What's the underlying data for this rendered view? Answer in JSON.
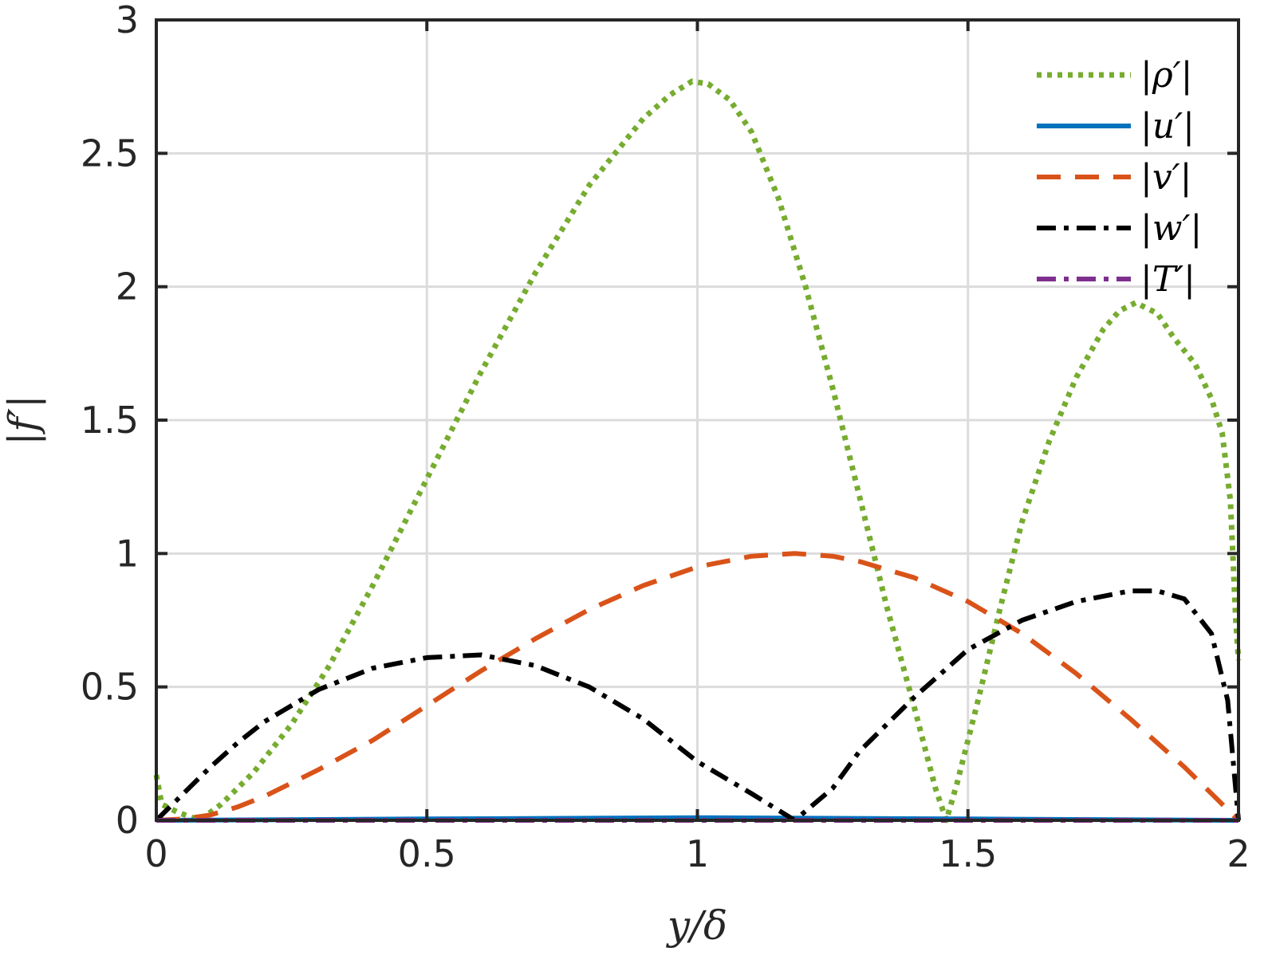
{
  "chart_data": {
    "type": "line",
    "title": "",
    "xlabel": "y/δ",
    "ylabel": "|f′|",
    "xlim": [
      0,
      2
    ],
    "ylim": [
      0,
      3
    ],
    "xticks": [
      0,
      0.5,
      1,
      1.5,
      2
    ],
    "xtick_labels": [
      "0",
      "0.5",
      "1",
      "1.5",
      "2"
    ],
    "yticks": [
      0,
      0.5,
      1,
      1.5,
      2,
      2.5,
      3
    ],
    "ytick_labels": [
      "0",
      "0.5",
      "1",
      "1.5",
      "2",
      "2.5",
      "3"
    ],
    "grid": true,
    "legend_position": "top-right",
    "series": [
      {
        "name": "|ρ′|",
        "color": "#77ac30",
        "style": "dotted",
        "x": [
          0,
          0.01,
          0.04,
          0.08,
          0.12,
          0.18,
          0.25,
          0.32,
          0.4,
          0.5,
          0.6,
          0.7,
          0.8,
          0.9,
          0.95,
          0.99,
          1.02,
          1.06,
          1.1,
          1.15,
          1.2,
          1.25,
          1.3,
          1.35,
          1.4,
          1.44,
          1.46,
          1.48,
          1.52,
          1.56,
          1.6,
          1.65,
          1.7,
          1.75,
          1.78,
          1.81,
          1.85,
          1.88,
          1.92,
          1.95,
          1.97,
          1.985,
          1.995,
          2.0
        ],
        "y": [
          0.17,
          0.06,
          0.03,
          0.0,
          0.06,
          0.18,
          0.36,
          0.58,
          0.88,
          1.28,
          1.68,
          2.05,
          2.38,
          2.63,
          2.72,
          2.77,
          2.76,
          2.7,
          2.58,
          2.33,
          2.0,
          1.62,
          1.21,
          0.8,
          0.43,
          0.12,
          0.0,
          0.14,
          0.46,
          0.8,
          1.12,
          1.42,
          1.66,
          1.84,
          1.91,
          1.94,
          1.9,
          1.81,
          1.71,
          1.58,
          1.45,
          1.2,
          0.75,
          0.6
        ]
      },
      {
        "name": "|u′|",
        "color": "#0072bd",
        "style": "solid",
        "x": [
          0,
          0.5,
          1,
          1.5,
          2
        ],
        "y": [
          0.0,
          0.005,
          0.01,
          0.005,
          0.0
        ]
      },
      {
        "name": "|v′|",
        "color": "#d95319",
        "style": "dashed",
        "x": [
          0,
          0.05,
          0.1,
          0.15,
          0.2,
          0.3,
          0.4,
          0.5,
          0.6,
          0.7,
          0.8,
          0.9,
          1.0,
          1.1,
          1.18,
          1.25,
          1.3,
          1.4,
          1.5,
          1.6,
          1.7,
          1.8,
          1.9,
          1.95,
          2.0
        ],
        "y": [
          0.0,
          0.005,
          0.02,
          0.05,
          0.09,
          0.19,
          0.3,
          0.43,
          0.56,
          0.68,
          0.79,
          0.88,
          0.95,
          0.99,
          1.0,
          0.99,
          0.97,
          0.91,
          0.82,
          0.7,
          0.55,
          0.38,
          0.2,
          0.1,
          0.0
        ]
      },
      {
        "name": "|w′|",
        "color": "#000000",
        "style": "dashdot",
        "x": [
          0,
          0.05,
          0.1,
          0.15,
          0.2,
          0.3,
          0.4,
          0.5,
          0.6,
          0.7,
          0.8,
          0.9,
          1.0,
          1.1,
          1.18,
          1.25,
          1.3,
          1.4,
          1.5,
          1.6,
          1.7,
          1.8,
          1.85,
          1.9,
          1.95,
          1.98,
          2.0
        ],
        "y": [
          0.0,
          0.1,
          0.2,
          0.29,
          0.37,
          0.49,
          0.57,
          0.61,
          0.62,
          0.58,
          0.5,
          0.38,
          0.22,
          0.1,
          0.0,
          0.12,
          0.26,
          0.46,
          0.64,
          0.75,
          0.82,
          0.86,
          0.86,
          0.83,
          0.7,
          0.45,
          0.0
        ]
      },
      {
        "name": "|T′|",
        "color": "#7e2f8e",
        "style": "dashdot",
        "x": [
          0,
          0.5,
          1,
          1.5,
          2
        ],
        "y": [
          0.0,
          0.0,
          0.0,
          0.0,
          0.0
        ]
      }
    ]
  }
}
